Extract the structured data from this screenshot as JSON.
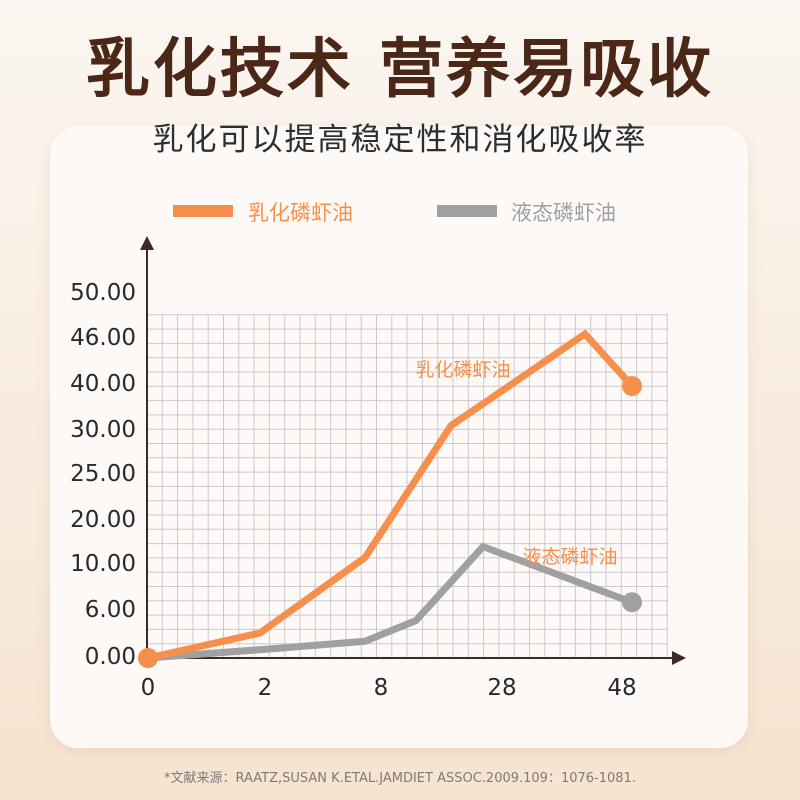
{
  "headline": "乳化技术 营养易吸收",
  "subtitle": "乳化可以提高稳定性和消化吸收率",
  "citation": "*文献来源：RAATZ,SUSAN K.ETAL.JAMDIET ASSOC.2009.109：1076-1081.",
  "colors": {
    "emulsified": "#f78f4c",
    "liquid": "#a0a0a0",
    "headline": "#4a2716"
  },
  "chart_data": {
    "type": "line",
    "legend_position": "top",
    "grid": true,
    "x_labels": [
      "0",
      "2",
      "8",
      "28",
      "48"
    ],
    "y_labels": [
      "0.00",
      "6.00",
      "10.00",
      "20.00",
      "25.00",
      "30.00",
      "40.00",
      "46.00",
      "50.00"
    ],
    "series": [
      {
        "name": "乳化磷虾油",
        "color": "#f78f4c",
        "label": "乳化磷虾油",
        "points": [
          {
            "x": "0",
            "y": 0.0
          },
          {
            "x": "2",
            "y": 3.0
          },
          {
            "x": "6",
            "y": 11.0
          },
          {
            "x": "12",
            "y": 31.0
          },
          {
            "x": "40",
            "y": 46.5
          },
          {
            "x": "48",
            "y": 40.0
          }
        ]
      },
      {
        "name": "液态磷虾油",
        "color": "#a0a0a0",
        "label": "液态磷虾油",
        "points": [
          {
            "x": "0",
            "y": 0.0
          },
          {
            "x": "2",
            "y": 1.0
          },
          {
            "x": "6",
            "y": 2.0
          },
          {
            "x": "10",
            "y": 4.5
          },
          {
            "x": "28",
            "y": 13.5
          },
          {
            "x": "48",
            "y": 6.5
          }
        ]
      }
    ]
  }
}
